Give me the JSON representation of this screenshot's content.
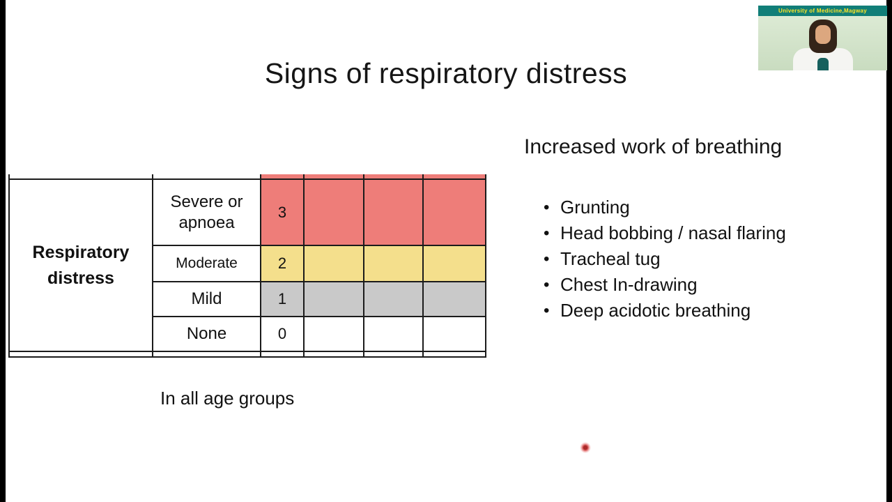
{
  "slide": {
    "title": "Signs of respiratory distress",
    "caption": "In all age groups"
  },
  "score_table": {
    "row_header": "Respiratory distress",
    "rows": [
      {
        "label": "Severe or apnoea",
        "score": "3",
        "fill": "#ee7d79"
      },
      {
        "label": "Moderate",
        "score": "2",
        "fill": "#f4df8c"
      },
      {
        "label": "Mild",
        "score": "1",
        "fill": "#c9c9c9"
      },
      {
        "label": "None",
        "score": "0",
        "fill": "#ffffff"
      }
    ]
  },
  "work_of_breathing": {
    "heading": "Increased work of breathing",
    "items": [
      "Grunting",
      "Head bobbing / nasal flaring",
      "Tracheal tug",
      "Chest In-drawing",
      "Deep acidotic breathing"
    ]
  },
  "webcam": {
    "banner_text": "University of Medicine,Magway"
  },
  "laser_pointer": {
    "color": "#c23a32"
  }
}
